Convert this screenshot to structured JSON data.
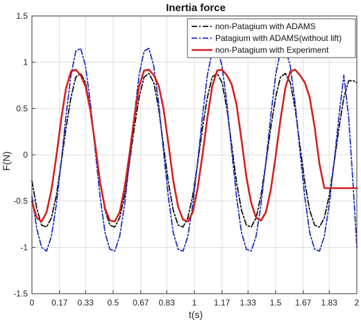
{
  "chart_data": {
    "type": "line",
    "title": "Inertia force",
    "xlabel": "t(s)",
    "ylabel": "F(N)",
    "xlim": [
      0,
      2
    ],
    "ylim": [
      -1.5,
      1.5
    ],
    "grid": true,
    "legend_position": "top-right",
    "xticks": [
      0,
      0.17,
      0.33,
      0.5,
      0.67,
      0.83,
      1,
      1.17,
      1.33,
      1.5,
      1.67,
      1.83,
      2
    ],
    "xtick_labels": [
      "0",
      "0.17",
      "0.33",
      "0.5",
      "0.67",
      "0.83",
      "1",
      "1.17",
      "1.33",
      "1.5",
      "1.67",
      "1.83",
      "2"
    ],
    "yticks": [
      -1.5,
      -1,
      -0.5,
      0,
      0.5,
      1,
      1.5
    ],
    "ytick_labels": [
      "-1.5",
      "-1",
      "-0.5",
      "0",
      "0.5",
      "1",
      "1.5"
    ],
    "series": [
      {
        "name": "non-Patagium with ADAMS",
        "color": "#111111",
        "dash": "dashdot",
        "x": [
          0,
          0.03,
          0.06,
          0.09,
          0.12,
          0.15,
          0.18,
          0.21,
          0.24,
          0.27,
          0.3,
          0.33,
          0.36,
          0.39,
          0.42,
          0.45,
          0.48,
          0.51,
          0.54,
          0.57,
          0.6,
          0.63,
          0.66,
          0.69,
          0.72,
          0.75,
          0.78,
          0.81,
          0.84,
          0.87,
          0.9,
          0.93,
          0.96,
          0.99,
          1.02,
          1.05,
          1.08,
          1.11,
          1.14,
          1.17,
          1.2,
          1.23,
          1.26,
          1.29,
          1.32,
          1.35,
          1.38,
          1.41,
          1.44,
          1.47,
          1.5,
          1.53,
          1.56,
          1.59,
          1.62,
          1.65,
          1.68,
          1.71,
          1.74,
          1.77,
          1.8,
          1.83,
          1.86,
          1.89,
          1.92,
          1.95,
          1.98,
          2.0
        ],
        "y": [
          -0.28,
          -0.58,
          -0.76,
          -0.78,
          -0.68,
          -0.44,
          -0.09,
          0.29,
          0.62,
          0.84,
          0.88,
          0.78,
          0.5,
          0.1,
          -0.3,
          -0.6,
          -0.76,
          -0.78,
          -0.68,
          -0.44,
          -0.09,
          0.29,
          0.62,
          0.84,
          0.88,
          0.78,
          0.5,
          0.1,
          -0.3,
          -0.6,
          -0.76,
          -0.78,
          -0.68,
          -0.44,
          -0.09,
          0.29,
          0.62,
          0.84,
          0.88,
          0.78,
          0.5,
          0.1,
          -0.3,
          -0.6,
          -0.76,
          -0.78,
          -0.68,
          -0.44,
          -0.09,
          0.29,
          0.62,
          0.84,
          0.88,
          0.78,
          0.5,
          0.1,
          -0.3,
          -0.6,
          -0.76,
          -0.78,
          -0.68,
          -0.44,
          -0.09,
          0.29,
          0.62,
          0.8,
          0.8,
          0.78
        ]
      },
      {
        "name": "Patagium with ADAMS(without lift)",
        "color": "#1f2fbf",
        "dash": "dashdot",
        "x": [
          0,
          0.03,
          0.06,
          0.09,
          0.12,
          0.15,
          0.18,
          0.21,
          0.24,
          0.27,
          0.3,
          0.33,
          0.36,
          0.39,
          0.42,
          0.45,
          0.48,
          0.51,
          0.54,
          0.57,
          0.6,
          0.63,
          0.66,
          0.69,
          0.72,
          0.75,
          0.78,
          0.81,
          0.84,
          0.87,
          0.9,
          0.93,
          0.96,
          0.99,
          1.02,
          1.05,
          1.08,
          1.11,
          1.14,
          1.17,
          1.2,
          1.23,
          1.26,
          1.29,
          1.32,
          1.35,
          1.38,
          1.41,
          1.44,
          1.47,
          1.5,
          1.53,
          1.56,
          1.59,
          1.62,
          1.65,
          1.68,
          1.71,
          1.74,
          1.77,
          1.8,
          1.83,
          1.86,
          1.89,
          1.92,
          1.95,
          1.98,
          2.0
        ],
        "y": [
          -0.45,
          -0.8,
          -1.0,
          -1.04,
          -0.88,
          -0.54,
          -0.08,
          0.42,
          0.86,
          1.12,
          1.15,
          0.96,
          0.56,
          0.04,
          -0.46,
          -0.84,
          -1.02,
          -1.04,
          -0.88,
          -0.54,
          -0.08,
          0.42,
          0.86,
          1.12,
          1.15,
          0.96,
          0.56,
          0.04,
          -0.46,
          -0.84,
          -1.02,
          -1.04,
          -0.88,
          -0.54,
          -0.08,
          0.42,
          0.86,
          1.12,
          1.15,
          0.96,
          0.56,
          0.04,
          -0.46,
          -0.84,
          -1.02,
          -1.04,
          -0.88,
          -0.54,
          -0.08,
          0.42,
          0.86,
          1.12,
          1.15,
          0.96,
          0.56,
          0.04,
          -0.46,
          -0.84,
          -1.02,
          -1.04,
          -0.88,
          -0.54,
          -0.08,
          0.42,
          0.86,
          0.4,
          -0.4,
          -1.0
        ]
      },
      {
        "name": "non-Patagium with Experiment",
        "color": "#d42020",
        "dash": "solid",
        "x": [
          0,
          0.03,
          0.06,
          0.09,
          0.12,
          0.15,
          0.18,
          0.21,
          0.24,
          0.27,
          0.3,
          0.33,
          0.36,
          0.39,
          0.42,
          0.45,
          0.48,
          0.51,
          0.54,
          0.57,
          0.6,
          0.63,
          0.66,
          0.69,
          0.72,
          0.75,
          0.78,
          0.81,
          0.84,
          0.87,
          0.9,
          0.93,
          0.96,
          0.99,
          1.02,
          1.05,
          1.08,
          1.11,
          1.14,
          1.17,
          1.2,
          1.23,
          1.26,
          1.29,
          1.32,
          1.35,
          1.38,
          1.41,
          1.44,
          1.47,
          1.5,
          1.53,
          1.56,
          1.59,
          1.62,
          1.65,
          1.68,
          1.71,
          1.74,
          1.77,
          1.8,
          1.83,
          1.86,
          1.89,
          1.92,
          1.95,
          1.98,
          2.0
        ],
        "y": [
          -0.5,
          -0.68,
          -0.72,
          -0.62,
          -0.38,
          -0.02,
          0.38,
          0.72,
          0.9,
          0.92,
          0.86,
          0.74,
          0.48,
          0.1,
          -0.3,
          -0.58,
          -0.71,
          -0.72,
          -0.62,
          -0.36,
          0.0,
          0.4,
          0.74,
          0.91,
          0.92,
          0.86,
          0.75,
          0.5,
          0.12,
          -0.28,
          -0.56,
          -0.7,
          -0.72,
          -0.62,
          -0.36,
          0.0,
          0.4,
          0.74,
          0.91,
          0.92,
          0.86,
          0.76,
          0.54,
          0.16,
          -0.24,
          -0.52,
          -0.68,
          -0.71,
          -0.62,
          -0.38,
          -0.02,
          0.38,
          0.72,
          0.9,
          0.92,
          0.86,
          0.78,
          0.62,
          0.3,
          -0.1,
          -0.36,
          -0.36,
          -0.36,
          -0.36,
          -0.36,
          -0.36,
          -0.36,
          -0.36
        ]
      }
    ]
  }
}
